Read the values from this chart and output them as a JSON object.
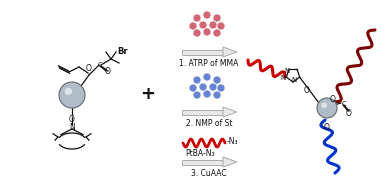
{
  "background_color": "#ffffff",
  "figsize": [
    3.89,
    1.92
  ],
  "dpi": 100,
  "colors": {
    "red": "#cc0000",
    "dark_red": "#7b0000",
    "blue": "#0033cc",
    "gray_sphere": "#b0bcc8",
    "gray_sphere_edge": "#606870",
    "pink_dots": "#cc5566",
    "pink_dots_edge": "#dd8899",
    "blue_dots": "#5577cc",
    "blue_dots_edge": "#8899dd",
    "arrow_fill": "#e8e8e8",
    "arrow_edge": "#aaaaaa",
    "black": "#111111"
  },
  "step1_label": "1. ATRP of MMA",
  "step2_label": "2. NMP of St",
  "step3_label": "3. CuAAC",
  "ptba_label": "PtBA-N₃",
  "n3_label": "-N₃",
  "plus_sign": "+",
  "br_label": "Br",
  "o_label": "O",
  "c_label": "C",
  "n_label": "N"
}
